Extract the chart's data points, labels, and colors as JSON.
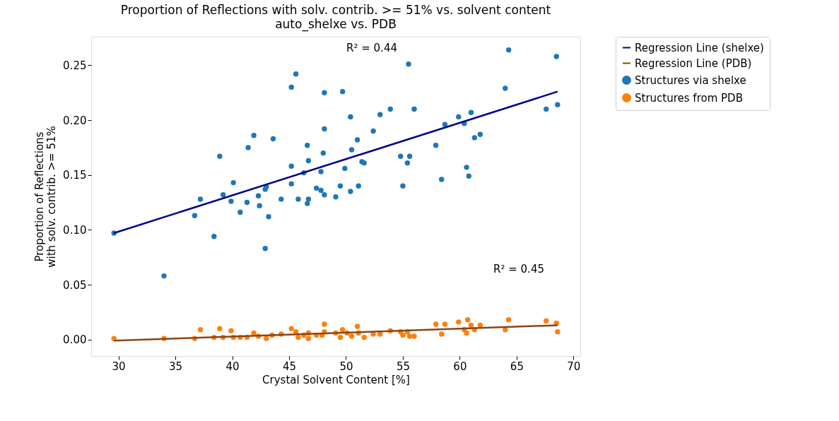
{
  "chart_data": {
    "type": "scatter",
    "title": "Proportion of Reflections with solv. contrib. >= 51% vs. solvent content",
    "subtitle": "auto_shelxe vs. PDB",
    "xlabel": "Crystal Solvent Content [%]",
    "ylabel": "Proportion of Reflections\nwith solv. contrib. >= 51%",
    "xlim": [
      27.6,
      70.6
    ],
    "ylim": [
      -0.015,
      0.276
    ],
    "xticks": [
      30,
      35,
      40,
      45,
      50,
      55,
      60,
      65,
      70
    ],
    "yticks": [
      {
        "value": 0,
        "label": "0.00"
      },
      {
        "value": 0.05,
        "label": "0.05"
      },
      {
        "value": 0.1,
        "label": "0.10"
      },
      {
        "value": 0.15,
        "label": "0.15"
      },
      {
        "value": 0.2,
        "label": "0.20"
      },
      {
        "value": 0.25,
        "label": "0.25"
      }
    ],
    "grid": false,
    "legend": "right",
    "annotations": [
      "R² = 0.44",
      "R² = 0.45"
    ],
    "series": [
      {
        "name": "Regression Line (shelxe)",
        "type": "line",
        "marker": "none",
        "color": "#00008b",
        "x": [
          29.6,
          68.6
        ],
        "values": [
          0.097,
          0.226
        ]
      },
      {
        "name": "Regression Line (PDB)",
        "type": "line",
        "marker": "none",
        "color": "#8b4513",
        "x": [
          29.6,
          68.6
        ],
        "values": [
          -0.001,
          0.013
        ]
      },
      {
        "name": "Structures via shelxe",
        "marker": "circle",
        "color": "#1f77b4",
        "x": [
          29.6,
          34.0,
          36.7,
          37.2,
          38.4,
          38.9,
          39.2,
          39.9,
          40.1,
          40.7,
          41.3,
          41.4,
          41.9,
          42.3,
          42.4,
          42.9,
          43.0,
          42.9,
          43.2,
          43.6,
          44.3,
          45.2,
          45.6,
          45.2,
          45.2,
          45.8,
          46.3,
          46.6,
          46.7,
          46.7,
          46.6,
          47.4,
          47.8,
          48.0,
          48.1,
          48.1,
          47.8,
          48.1,
          49.1,
          49.5,
          49.9,
          49.7,
          50.4,
          50.4,
          50.5,
          51.0,
          51.1,
          51.4,
          51.6,
          52.4,
          53.0,
          53.9,
          54.8,
          55.0,
          55.4,
          55.6,
          55.5,
          56.0,
          57.9,
          58.4,
          58.7,
          59.9,
          60.4,
          61.0,
          60.6,
          60.8,
          61.3,
          61.8,
          64.0,
          64.3,
          67.6,
          68.5,
          68.6
        ],
        "values": [
          0.097,
          0.058,
          0.113,
          0.128,
          0.094,
          0.167,
          0.132,
          0.126,
          0.143,
          0.116,
          0.125,
          0.175,
          0.186,
          0.131,
          0.122,
          0.083,
          0.139,
          0.137,
          0.112,
          0.183,
          0.128,
          0.23,
          0.242,
          0.158,
          0.142,
          0.128,
          0.152,
          0.177,
          0.163,
          0.128,
          0.124,
          0.138,
          0.153,
          0.17,
          0.225,
          0.192,
          0.136,
          0.132,
          0.13,
          0.14,
          0.156,
          0.226,
          0.135,
          0.203,
          0.173,
          0.182,
          0.14,
          0.162,
          0.161,
          0.19,
          0.205,
          0.21,
          0.167,
          0.14,
          0.161,
          0.167,
          0.251,
          0.21,
          0.177,
          0.146,
          0.196,
          0.203,
          0.197,
          0.207,
          0.157,
          0.149,
          0.184,
          0.187,
          0.229,
          0.264,
          0.21,
          0.258,
          0.214
        ]
      },
      {
        "name": "Structures from PDB",
        "marker": "circle",
        "color": "#ff7f0e",
        "x": [
          29.6,
          34.0,
          36.7,
          37.2,
          38.4,
          38.9,
          39.2,
          39.9,
          40.1,
          40.7,
          41.3,
          41.9,
          42.3,
          43.0,
          43.5,
          44.3,
          45.2,
          45.6,
          45.8,
          46.3,
          46.7,
          46.7,
          47.4,
          48.1,
          48.1,
          47.9,
          49.1,
          49.5,
          49.7,
          50.1,
          50.5,
          51.0,
          51.1,
          51.6,
          52.4,
          53.0,
          53.9,
          54.8,
          55.0,
          55.4,
          55.6,
          56.0,
          57.9,
          58.4,
          58.7,
          59.9,
          60.4,
          60.6,
          60.7,
          61.0,
          61.3,
          61.8,
          64.0,
          64.3,
          67.6,
          68.5,
          68.6
        ],
        "values": [
          0.001,
          0.001,
          0.001,
          0.009,
          0.002,
          0.01,
          0.002,
          0.008,
          0.002,
          0.002,
          0.002,
          0.006,
          0.003,
          0.001,
          0.004,
          0.005,
          0.01,
          0.007,
          0.002,
          0.004,
          0.006,
          0.001,
          0.004,
          0.014,
          0.007,
          0.004,
          0.006,
          0.002,
          0.009,
          0.006,
          0.003,
          0.012,
          0.006,
          0.002,
          0.005,
          0.005,
          0.008,
          0.007,
          0.004,
          0.007,
          0.003,
          0.003,
          0.014,
          0.005,
          0.014,
          0.016,
          0.009,
          0.006,
          0.018,
          0.013,
          0.009,
          0.013,
          0.009,
          0.018,
          0.017,
          0.015,
          0.007
        ]
      }
    ]
  }
}
